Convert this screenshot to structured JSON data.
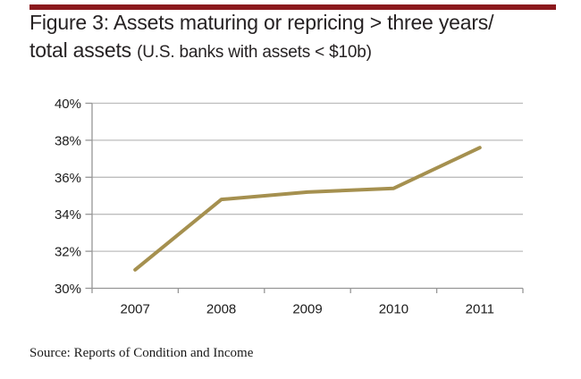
{
  "header": {
    "rule_color": "#8b191d",
    "title_line1": "Figure 3: Assets maturing or repricing > three years/",
    "title_line2_main": "total assets ",
    "title_line2_paren": "(U.S. banks with assets < $10b)"
  },
  "chart_data": {
    "type": "line",
    "title": "Figure 3: Assets maturing or repricing > three years/total assets (U.S. banks with assets < $10b)",
    "categories": [
      "2007",
      "2008",
      "2009",
      "2010",
      "2011"
    ],
    "series": [
      {
        "name": "Assets maturing or repricing > three years / total assets",
        "values": [
          31.0,
          34.8,
          35.2,
          35.4,
          37.6
        ]
      }
    ],
    "y_ticks": [
      "40%",
      "38%",
      "36%",
      "34%",
      "32%",
      "30%"
    ],
    "ylim": [
      30,
      40
    ],
    "y_tick_step": 2,
    "grid": true,
    "legend": false,
    "xlabel": "",
    "ylabel": "",
    "line_color": "#a5904f",
    "gridline_color": "#bdbdbd",
    "axis_color": "#969696",
    "tick_label_color": "#1c1c1c"
  },
  "footer": {
    "source": "Source: Reports of Condition and Income"
  }
}
